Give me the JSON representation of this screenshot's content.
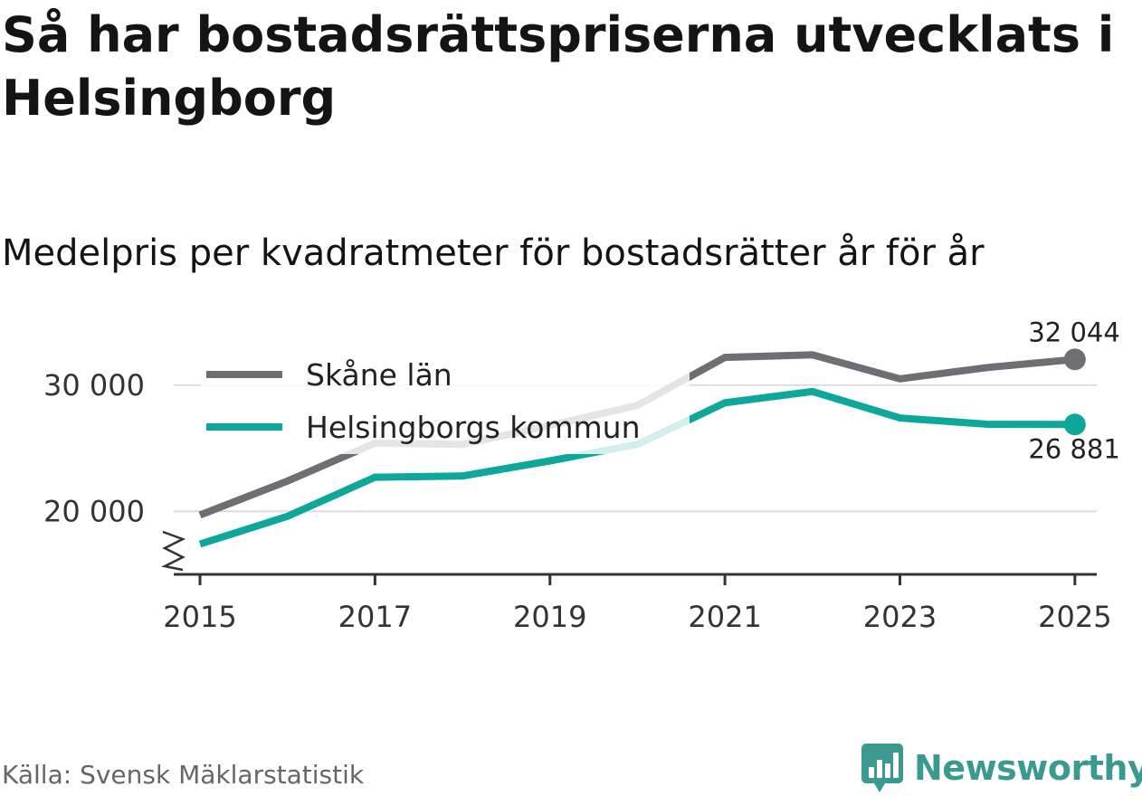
{
  "title": "Så har bostadsrättspriserna utvecklats i Helsingborg",
  "subtitle": "Medelpris per kvadratmeter för bostadsrätter år för år",
  "source": "Källa: Svensk Mäklarstatistik",
  "brand": {
    "name": "Newsworthy",
    "icon": "newsworthy-logo-icon",
    "color": "#3a9a8f"
  },
  "chart_data": {
    "type": "line",
    "title": "Så har bostadsrättspriserna utvecklats i Helsingborg",
    "subtitle": "Medelpris per kvadratmeter för bostadsrätter år för år",
    "xlabel": "",
    "ylabel": "",
    "x": [
      2015,
      2016,
      2017,
      2018,
      2019,
      2020,
      2021,
      2022,
      2023,
      2024,
      2025
    ],
    "x_ticks": [
      2015,
      2017,
      2019,
      2021,
      2023,
      2025
    ],
    "x_tick_labels": [
      "2015",
      "2017",
      "2019",
      "2021",
      "2023",
      "2025"
    ],
    "y_ticks": [
      20000,
      30000
    ],
    "y_tick_labels": [
      "20 000",
      "30 000"
    ],
    "ylim": [
      15000,
      34000
    ],
    "xlim": [
      2014.7,
      2025.25
    ],
    "grid": true,
    "axis_break": true,
    "legend_position": "top-left",
    "series": [
      {
        "name": "Skåne län",
        "color": "#6f6e73",
        "values": [
          19700,
          22400,
          25400,
          25300,
          26800,
          28400,
          32200,
          32400,
          30500,
          31400,
          32044
        ],
        "end_label": "32 044",
        "end_label_position": "above"
      },
      {
        "name": "Helsingborgs kommun",
        "color": "#0ea89b",
        "values": [
          17400,
          19600,
          22700,
          22800,
          24000,
          25300,
          28600,
          29500,
          27400,
          26900,
          26881
        ],
        "end_label": "26 881",
        "end_label_position": "below"
      }
    ]
  }
}
